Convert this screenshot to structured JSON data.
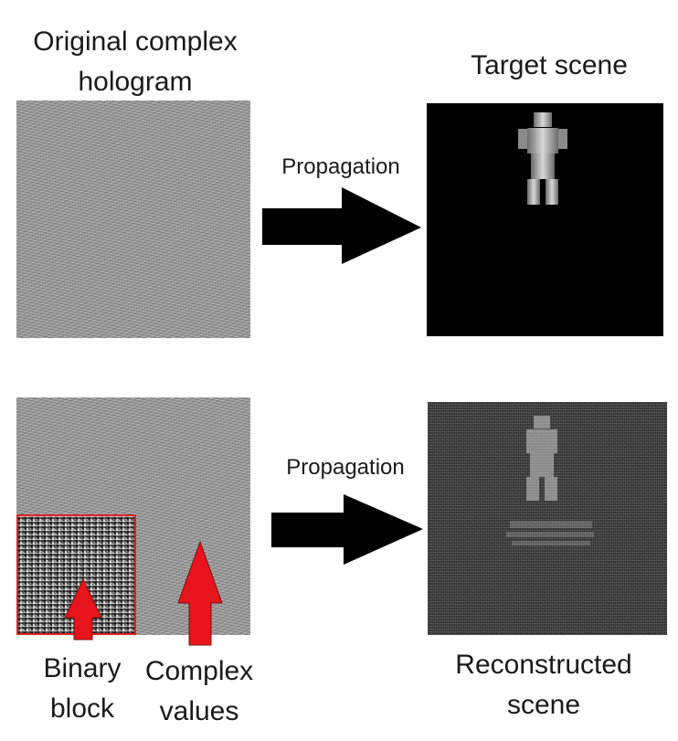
{
  "top_row": {
    "hologram_label": "Original complex\nhologram",
    "propagation_label": "Propagation",
    "target_label": "Target scene"
  },
  "bottom_row": {
    "propagation_label": "Propagation",
    "binary_block_label": "Binary\nblock",
    "complex_values_label": "Complex\nvalues",
    "reconstructed_label": "Reconstructed\nscene"
  },
  "colors": {
    "arrow_black": "#000000",
    "arrow_red": "#e8141b",
    "block_outline": "#e02020"
  }
}
